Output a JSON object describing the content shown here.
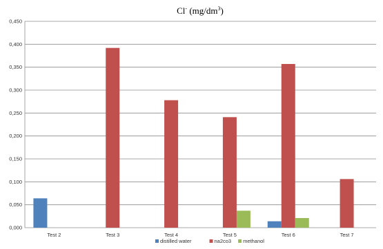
{
  "chart_data": {
    "type": "bar",
    "title_main": "Cl",
    "title_sup1": "-",
    "title_unit": " (mg/dm",
    "title_sup2": "3",
    "title_end": ")",
    "categories": [
      "Test 2",
      "Test 3",
      "Test 4",
      "Test 5",
      "Test 6",
      "Test 7"
    ],
    "series": [
      {
        "name": "distilled water",
        "color": "#4f81bd",
        "values": [
          0.064,
          null,
          null,
          null,
          0.014,
          null
        ]
      },
      {
        "name": "na2co3",
        "color": "#c0504d",
        "values": [
          null,
          0.392,
          0.278,
          0.241,
          0.357,
          0.106
        ]
      },
      {
        "name": "methanol",
        "color": "#9bbb59",
        "values": [
          null,
          null,
          null,
          0.037,
          0.021,
          null
        ]
      }
    ],
    "ylim": [
      0,
      0.45
    ],
    "yticks": [
      0,
      0.05,
      0.1,
      0.15,
      0.2,
      0.25,
      0.3,
      0.35,
      0.4,
      0.45
    ],
    "ytick_labels": [
      "0,000",
      "0,050",
      "0,100",
      "0,150",
      "0,200",
      "0,250",
      "0,300",
      "0,350",
      "0,400",
      "0,450"
    ],
    "grid": true,
    "legend_position": "bottom"
  }
}
